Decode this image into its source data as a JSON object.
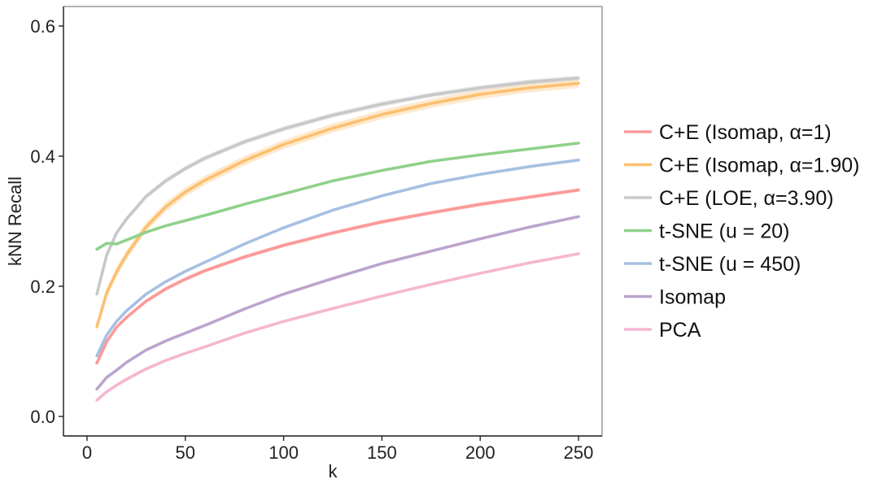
{
  "chart_data": {
    "type": "line",
    "title": "",
    "xlabel": "k",
    "ylabel": "kNN Recall",
    "xlim": [
      -12,
      262
    ],
    "ylim": [
      -0.03,
      0.63
    ],
    "x_ticks": [
      0,
      50,
      100,
      150,
      200,
      250
    ],
    "x_tick_labels": [
      "0",
      "50",
      "100",
      "150",
      "200",
      "250"
    ],
    "y_ticks": [
      0.0,
      0.2,
      0.4,
      0.6
    ],
    "y_tick_labels": [
      "0.0",
      "0.2",
      "0.4",
      "0.6"
    ],
    "grid": false,
    "legend_position": "right",
    "x": [
      5,
      10,
      15,
      20,
      30,
      40,
      50,
      60,
      80,
      100,
      125,
      150,
      175,
      200,
      225,
      250
    ],
    "series": [
      {
        "name": "C+E (Isomap, α=1)",
        "color": "#fb9a99",
        "values": [
          0.082,
          0.115,
          0.137,
          0.152,
          0.177,
          0.196,
          0.211,
          0.224,
          0.245,
          0.263,
          0.282,
          0.299,
          0.313,
          0.326,
          0.337,
          0.348
        ],
        "band": 0.003
      },
      {
        "name": "C+E (Isomap, α=1.90)",
        "color": "#fdbf6f",
        "values": [
          0.138,
          0.19,
          0.222,
          0.248,
          0.291,
          0.322,
          0.345,
          0.363,
          0.393,
          0.418,
          0.443,
          0.464,
          0.481,
          0.495,
          0.505,
          0.512
        ],
        "band": 0.007
      },
      {
        "name": "C+E (LOE, α=3.90)",
        "color": "#c8c8c8",
        "values": [
          0.188,
          0.248,
          0.282,
          0.303,
          0.338,
          0.362,
          0.381,
          0.397,
          0.422,
          0.442,
          0.463,
          0.48,
          0.494,
          0.505,
          0.514,
          0.52
        ],
        "band": 0.004
      },
      {
        "name": "t-SNE (u = 20)",
        "color": "#8fd18a",
        "values": [
          0.257,
          0.266,
          0.265,
          0.271,
          0.283,
          0.293,
          0.301,
          0.309,
          0.326,
          0.342,
          0.362,
          0.378,
          0.392,
          0.402,
          0.411,
          0.42
        ],
        "band": 0
      },
      {
        "name": "t-SNE (u = 450)",
        "color": "#a6c0e3",
        "values": [
          0.093,
          0.125,
          0.146,
          0.162,
          0.188,
          0.207,
          0.223,
          0.237,
          0.265,
          0.29,
          0.317,
          0.339,
          0.358,
          0.372,
          0.384,
          0.394
        ],
        "band": 0
      },
      {
        "name": "Isomap",
        "color": "#bba4ce",
        "values": [
          0.042,
          0.06,
          0.071,
          0.083,
          0.102,
          0.116,
          0.128,
          0.14,
          0.165,
          0.188,
          0.212,
          0.235,
          0.254,
          0.273,
          0.291,
          0.307
        ],
        "band": 0
      },
      {
        "name": "PCA",
        "color": "#f5b6d0",
        "values": [
          0.025,
          0.038,
          0.048,
          0.057,
          0.073,
          0.086,
          0.097,
          0.107,
          0.128,
          0.146,
          0.166,
          0.185,
          0.203,
          0.22,
          0.236,
          0.25
        ],
        "band": 0
      }
    ]
  }
}
